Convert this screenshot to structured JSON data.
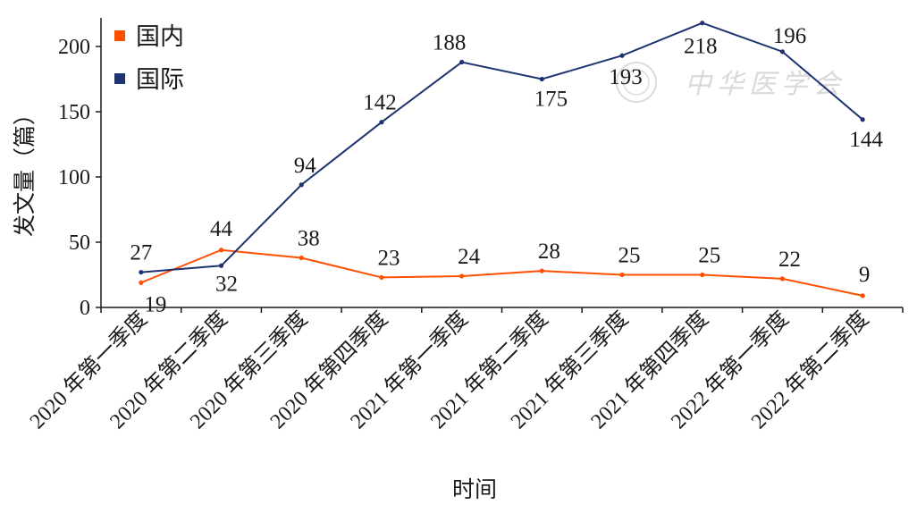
{
  "chart_data": {
    "type": "line",
    "categories": [
      "2020 年第一季度",
      "2020 年第二季度",
      "2020 年第三季度",
      "2020 年第四季度",
      "2021 年第一季度",
      "2021 年第二季度",
      "2021 年第三季度",
      "2021 年第四季度",
      "2022 年第一季度",
      "2022 年第二季度"
    ],
    "series": [
      {
        "name": "国内",
        "color": "#ff4f00",
        "values": [
          19,
          44,
          38,
          23,
          24,
          28,
          25,
          25,
          22,
          9
        ]
      },
      {
        "name": "国际",
        "color": "#1f3370",
        "values": [
          27,
          32,
          94,
          142,
          188,
          175,
          193,
          218,
          196,
          144
        ]
      }
    ],
    "xlabel": "时间",
    "ylabel": "发文量（篇）",
    "ylim": [
      0,
      200
    ],
    "yticks": [
      0,
      50,
      100,
      150,
      200
    ],
    "legend": "top-left",
    "grid": false
  },
  "watermark": {
    "text": "中华医学会"
  }
}
